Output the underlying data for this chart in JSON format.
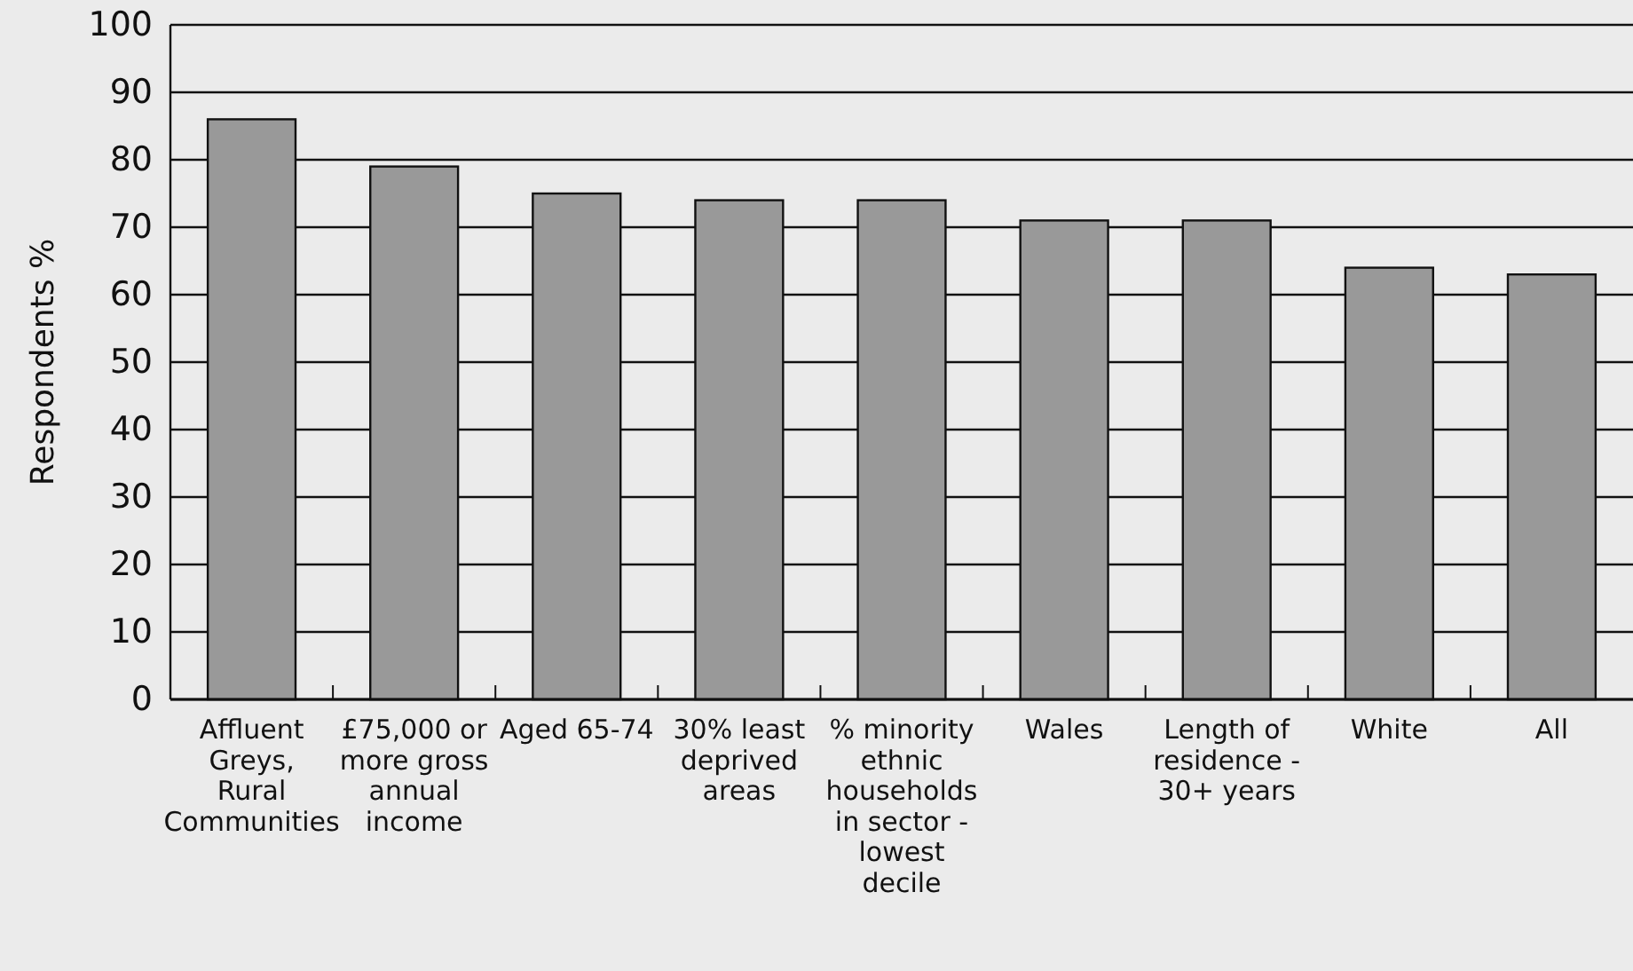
{
  "chart_data": {
    "type": "bar",
    "ylabel": "Respondents %",
    "categories": [
      "Affluent Greys, Rural Communities",
      "£75,000 or more gross annual income",
      "Aged 65-74",
      "30% least deprived areas",
      "% minority ethnic households in sector - lowest decile",
      "Wales",
      "Length of residence - 30+ years",
      "White",
      "All"
    ],
    "values": [
      86,
      79,
      75,
      74,
      74,
      71,
      71,
      64,
      63
    ],
    "color": "#999999",
    "ylim": [
      0,
      100
    ],
    "yticks": [
      0,
      10,
      20,
      30,
      40,
      50,
      60,
      70,
      80,
      90,
      100
    ],
    "grid": "y"
  }
}
